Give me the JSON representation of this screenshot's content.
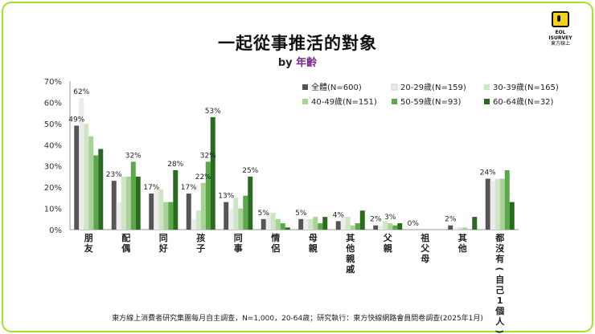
{
  "page": {
    "title": "一起從事推活的對象",
    "subtitle_prefix": "by",
    "subtitle_highlight": "年齡",
    "logo_line1": "EOL ISURVEY",
    "logo_line2": "東方線上",
    "footnote": "東方線上消費者研究集團每月自主調查，N=1,000，20-64歲；研究執行：東方快線網路會員問卷調查(2025年1月)"
  },
  "chart_data": {
    "type": "bar",
    "title": "一起從事推活的對象",
    "xlabel": "",
    "ylabel": "",
    "ylim": [
      0,
      70
    ],
    "yticks": [
      "0%",
      "10%",
      "20%",
      "30%",
      "40%",
      "50%",
      "60%",
      "70%"
    ],
    "categories": [
      "朋友",
      "配偶",
      "同好",
      "孩子",
      "同事",
      "情侶",
      "母親",
      "其他親戚",
      "父親",
      "祖父母",
      "其他",
      "都沒有(自己1個人)"
    ],
    "series": [
      {
        "name": "全體(N=600)",
        "color": "#555555",
        "values": [
          49,
          23,
          17,
          17,
          13,
          5,
          5,
          4,
          2,
          0,
          2,
          24
        ]
      },
      {
        "name": "20-29歲(N=159)",
        "color": "#ececec",
        "values": [
          62,
          13,
          19,
          5,
          10,
          8,
          5,
          6,
          2,
          0,
          1,
          23
        ]
      },
      {
        "name": "30-39歲(N=165)",
        "color": "#cfe6c6",
        "values": [
          50,
          25,
          19,
          9,
          15,
          8,
          5,
          6,
          4,
          0,
          1,
          24
        ]
      },
      {
        "name": "40-49歲(N=151)",
        "color": "#a7d496",
        "values": [
          44,
          25,
          13,
          22,
          10,
          5,
          6,
          2,
          3,
          0,
          1,
          24
        ]
      },
      {
        "name": "50-59歲(N=93)",
        "color": "#5aa84a",
        "values": [
          35,
          32,
          13,
          32,
          16,
          3,
          3,
          3,
          2,
          0,
          0,
          28
        ]
      },
      {
        "name": "60-64歲(N=32)",
        "color": "#2c6a22",
        "values": [
          38,
          25,
          28,
          53,
          25,
          1,
          6,
          9,
          3,
          0,
          6,
          13
        ]
      }
    ],
    "data_labels": [
      {
        "category": "朋友",
        "series": "全體(N=600)",
        "text": "49%"
      },
      {
        "category": "朋友",
        "series": "20-29歲(N=159)",
        "text": "62%"
      },
      {
        "category": "配偶",
        "series": "全體(N=600)",
        "text": "23%"
      },
      {
        "category": "配偶",
        "series": "50-59歲(N=93)",
        "text": "32%"
      },
      {
        "category": "同好",
        "series": "全體(N=600)",
        "text": "17%"
      },
      {
        "category": "同好",
        "series": "60-64歲(N=32)",
        "text": "28%"
      },
      {
        "category": "孩子",
        "series": "全體(N=600)",
        "text": "17%"
      },
      {
        "category": "孩子",
        "series": "40-49歲(N=151)",
        "text": "22%"
      },
      {
        "category": "孩子",
        "series": "50-59歲(N=93)",
        "text": "32%"
      },
      {
        "category": "孩子",
        "series": "60-64歲(N=32)",
        "text": "53%"
      },
      {
        "category": "同事",
        "series": "全體(N=600)",
        "text": "13%"
      },
      {
        "category": "同事",
        "series": "60-64歲(N=32)",
        "text": "25%"
      },
      {
        "category": "情侶",
        "series": "全體(N=600)",
        "text": "5%"
      },
      {
        "category": "母親",
        "series": "全體(N=600)",
        "text": "5%"
      },
      {
        "category": "其他親戚",
        "series": "全體(N=600)",
        "text": "4%"
      },
      {
        "category": "父親",
        "series": "全體(N=600)",
        "text": "2%"
      },
      {
        "category": "父親",
        "series": "40-49歲(N=151)",
        "text": "3%"
      },
      {
        "category": "祖父母",
        "series": "全體(N=600)",
        "text": "0%"
      },
      {
        "category": "其他",
        "series": "全體(N=600)",
        "text": "2%"
      },
      {
        "category": "都沒有(自己1個人)",
        "series": "全體(N=600)",
        "text": "24%"
      }
    ],
    "legend_position": "top-right",
    "grid": false
  }
}
